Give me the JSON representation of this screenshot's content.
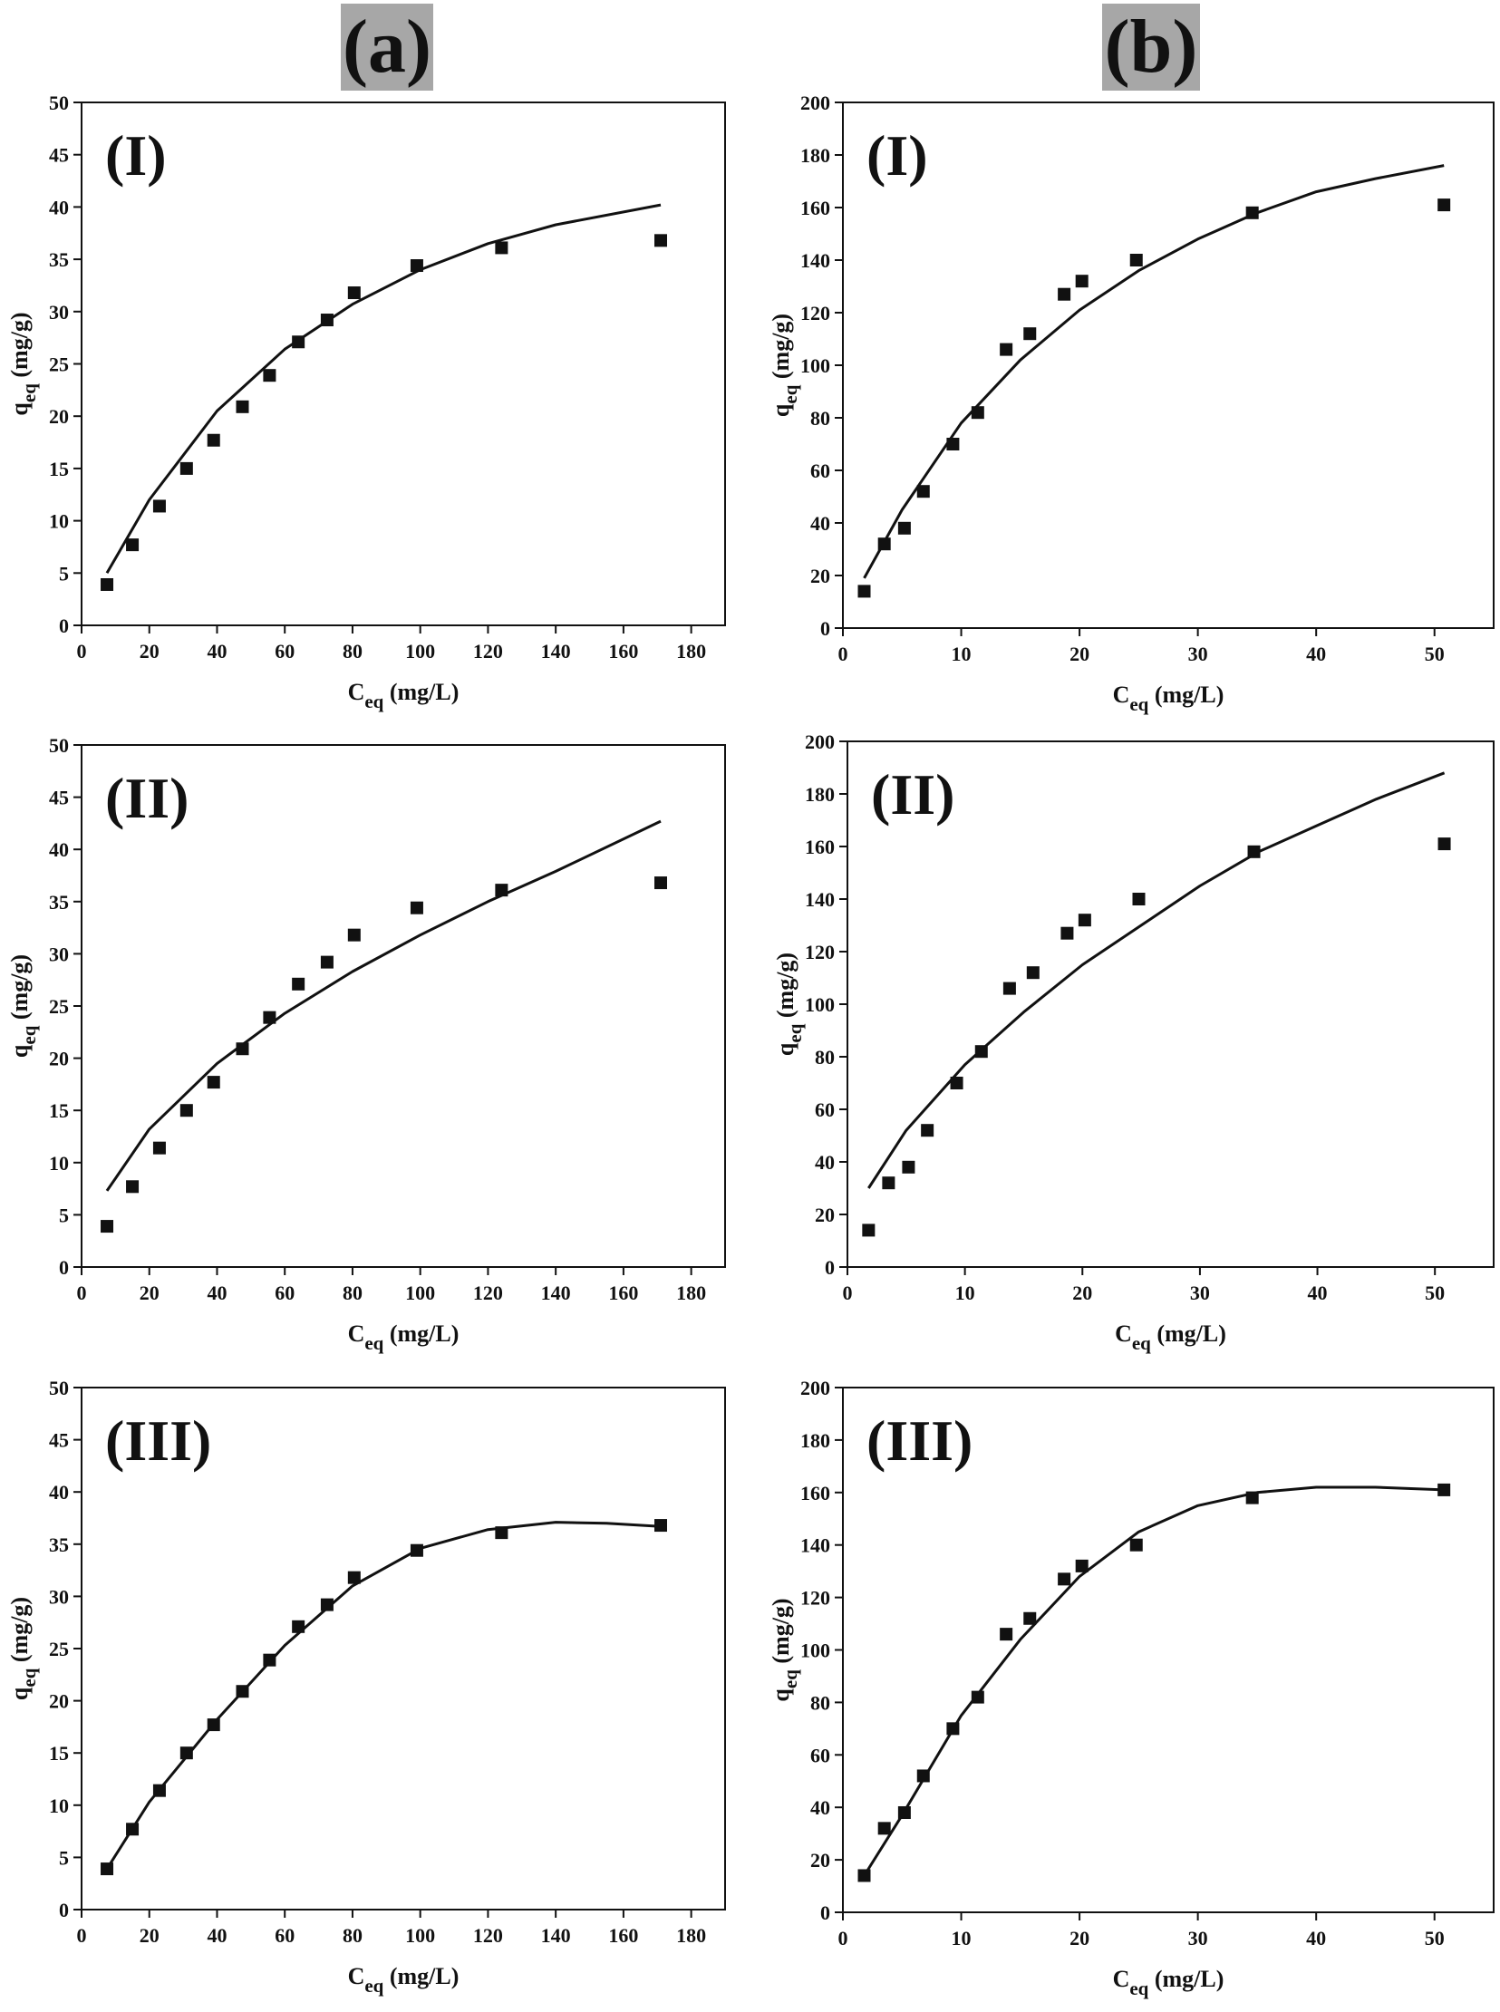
{
  "headers": {
    "a": "(a)",
    "b": "(b)"
  },
  "colors": {
    "ink": "#111111",
    "header_bg": "#a7a7a7"
  },
  "chart_data": [
    {
      "id": "a-I",
      "type": "scatter",
      "column": "(a)",
      "label": "(I)",
      "xlabel_main": "C",
      "xlabel_sub": "eq",
      "xlabel_unit": " (mg/L)",
      "ylabel_main": "q",
      "ylabel_sub": "eq",
      "ylabel_unit": " (mg/g)",
      "xlim": [
        0,
        190
      ],
      "ylim": [
        0,
        50
      ],
      "xticks": [
        0,
        20,
        40,
        60,
        80,
        100,
        120,
        140,
        160,
        180
      ],
      "yticks": [
        0,
        5,
        10,
        15,
        20,
        25,
        30,
        35,
        40,
        45,
        50
      ],
      "points": [
        [
          7.5,
          3.9
        ],
        [
          15,
          7.7
        ],
        [
          23,
          11.4
        ],
        [
          31,
          15
        ],
        [
          39,
          17.7
        ],
        [
          47.5,
          20.9
        ],
        [
          55.5,
          23.9
        ],
        [
          64,
          27.1
        ],
        [
          72.5,
          29.2
        ],
        [
          80.5,
          31.8
        ],
        [
          99,
          34.4
        ],
        [
          124,
          36.1
        ],
        [
          171,
          36.8
        ]
      ],
      "fit": [
        [
          7.5,
          5
        ],
        [
          20,
          12
        ],
        [
          40,
          20.5
        ],
        [
          60,
          26.4
        ],
        [
          80,
          30.7
        ],
        [
          100,
          34.0
        ],
        [
          120,
          36.5
        ],
        [
          140,
          38.3
        ],
        [
          171,
          40.2
        ]
      ]
    },
    {
      "id": "b-I",
      "type": "scatter",
      "column": "(b)",
      "label": "(I)",
      "xlabel_main": "C",
      "xlabel_sub": "eq",
      "xlabel_unit": " (mg/L)",
      "ylabel_main": "q",
      "ylabel_sub": "eq",
      "ylabel_unit": " (mg/g)",
      "xlim": [
        0,
        55
      ],
      "ylim": [
        0,
        200
      ],
      "xticks": [
        0,
        10,
        20,
        30,
        40,
        50
      ],
      "yticks": [
        0,
        20,
        40,
        60,
        80,
        100,
        120,
        140,
        160,
        180,
        200
      ],
      "points": [
        [
          1.8,
          14
        ],
        [
          3.5,
          32
        ],
        [
          5.2,
          38
        ],
        [
          6.8,
          52
        ],
        [
          9.3,
          70
        ],
        [
          11.4,
          82
        ],
        [
          13.8,
          106
        ],
        [
          15.8,
          112
        ],
        [
          18.7,
          127
        ],
        [
          20.2,
          132
        ],
        [
          24.8,
          140
        ],
        [
          34.6,
          158
        ],
        [
          50.8,
          161
        ]
      ],
      "fit": [
        [
          1.8,
          19
        ],
        [
          5,
          45
        ],
        [
          10,
          78
        ],
        [
          15,
          102
        ],
        [
          20,
          121
        ],
        [
          25,
          136
        ],
        [
          30,
          148
        ],
        [
          35,
          158
        ],
        [
          40,
          166
        ],
        [
          45,
          171
        ],
        [
          50.8,
          176
        ]
      ]
    },
    {
      "id": "a-II",
      "type": "scatter",
      "column": "(a)",
      "label": "(II)",
      "xlabel_main": "C",
      "xlabel_sub": "eq",
      "xlabel_unit": " (mg/L)",
      "ylabel_main": "q",
      "ylabel_sub": "eq",
      "ylabel_unit": " (mg/g)",
      "xlim": [
        0,
        190
      ],
      "ylim": [
        0,
        50
      ],
      "xticks": [
        0,
        20,
        40,
        60,
        80,
        100,
        120,
        140,
        160,
        180
      ],
      "yticks": [
        0,
        5,
        10,
        15,
        20,
        25,
        30,
        35,
        40,
        45,
        50
      ],
      "points": [
        [
          7.5,
          3.9
        ],
        [
          15,
          7.7
        ],
        [
          23,
          11.4
        ],
        [
          31,
          15
        ],
        [
          39,
          17.7
        ],
        [
          47.5,
          20.9
        ],
        [
          55.5,
          23.9
        ],
        [
          64,
          27.1
        ],
        [
          72.5,
          29.2
        ],
        [
          80.5,
          31.8
        ],
        [
          99,
          34.4
        ],
        [
          124,
          36.1
        ],
        [
          171,
          36.8
        ]
      ],
      "fit": [
        [
          7.5,
          7.3
        ],
        [
          20,
          13.2
        ],
        [
          40,
          19.5
        ],
        [
          60,
          24.3
        ],
        [
          80,
          28.3
        ],
        [
          100,
          31.8
        ],
        [
          120,
          35.0
        ],
        [
          140,
          37.9
        ],
        [
          171,
          42.7
        ]
      ]
    },
    {
      "id": "b-II",
      "type": "scatter",
      "column": "(b)",
      "label": "(II)",
      "xlabel_main": "C",
      "xlabel_sub": "eq",
      "xlabel_unit": " (mg/L)",
      "ylabel_main": "q",
      "ylabel_sub": "eq",
      "ylabel_unit": " (mg/g)",
      "xlim": [
        0,
        55
      ],
      "ylim": [
        0,
        200
      ],
      "xticks": [
        0,
        10,
        20,
        30,
        40,
        50
      ],
      "yticks": [
        0,
        20,
        40,
        60,
        80,
        100,
        120,
        140,
        160,
        180,
        200
      ],
      "points": [
        [
          1.8,
          14
        ],
        [
          3.5,
          32
        ],
        [
          5.2,
          38
        ],
        [
          6.8,
          52
        ],
        [
          9.3,
          70
        ],
        [
          11.4,
          82
        ],
        [
          13.8,
          106
        ],
        [
          15.8,
          112
        ],
        [
          18.7,
          127
        ],
        [
          20.2,
          132
        ],
        [
          24.8,
          140
        ],
        [
          34.6,
          158
        ],
        [
          50.8,
          161
        ]
      ],
      "fit": [
        [
          1.8,
          30
        ],
        [
          5,
          52
        ],
        [
          10,
          77
        ],
        [
          15,
          97
        ],
        [
          20,
          115
        ],
        [
          25,
          130
        ],
        [
          30,
          145
        ],
        [
          35,
          158
        ],
        [
          40,
          168
        ],
        [
          45,
          178
        ],
        [
          50.8,
          188
        ]
      ]
    },
    {
      "id": "a-III",
      "type": "scatter",
      "column": "(a)",
      "label": "(III)",
      "xlabel_main": "C",
      "xlabel_sub": "eq",
      "xlabel_unit": " (mg/L)",
      "ylabel_main": "q",
      "ylabel_sub": "eq",
      "ylabel_unit": " (mg/g)",
      "xlim": [
        0,
        190
      ],
      "ylim": [
        0,
        50
      ],
      "xticks": [
        0,
        20,
        40,
        60,
        80,
        100,
        120,
        140,
        160,
        180
      ],
      "yticks": [
        0,
        5,
        10,
        15,
        20,
        25,
        30,
        35,
        40,
        45,
        50
      ],
      "points": [
        [
          7.5,
          3.9
        ],
        [
          15,
          7.7
        ],
        [
          23,
          11.4
        ],
        [
          31,
          15
        ],
        [
          39,
          17.7
        ],
        [
          47.5,
          20.9
        ],
        [
          55.5,
          23.9
        ],
        [
          64,
          27.1
        ],
        [
          72.5,
          29.2
        ],
        [
          80.5,
          31.8
        ],
        [
          99,
          34.4
        ],
        [
          124,
          36.1
        ],
        [
          171,
          36.8
        ]
      ],
      "fit": [
        [
          7.5,
          3.9
        ],
        [
          20,
          10.3
        ],
        [
          40,
          18.2
        ],
        [
          60,
          25.3
        ],
        [
          80,
          31.0
        ],
        [
          100,
          34.6
        ],
        [
          120,
          36.4
        ],
        [
          140,
          37.1
        ],
        [
          155,
          37.0
        ],
        [
          171,
          36.7
        ]
      ]
    },
    {
      "id": "b-III",
      "type": "scatter",
      "column": "(b)",
      "label": "(III)",
      "xlabel_main": "C",
      "xlabel_sub": "eq",
      "xlabel_unit": " (mg/L)",
      "ylabel_main": "q",
      "ylabel_sub": "eq",
      "ylabel_unit": " (mg/g)",
      "xlim": [
        0,
        55
      ],
      "ylim": [
        0,
        200
      ],
      "xticks": [
        0,
        10,
        20,
        30,
        40,
        50
      ],
      "yticks": [
        0,
        20,
        40,
        60,
        80,
        100,
        120,
        140,
        160,
        180,
        200
      ],
      "points": [
        [
          1.8,
          14
        ],
        [
          3.5,
          32
        ],
        [
          5.2,
          38
        ],
        [
          6.8,
          52
        ],
        [
          9.3,
          70
        ],
        [
          11.4,
          82
        ],
        [
          13.8,
          106
        ],
        [
          15.8,
          112
        ],
        [
          18.7,
          127
        ],
        [
          20.2,
          132
        ],
        [
          24.8,
          140
        ],
        [
          34.6,
          158
        ],
        [
          50.8,
          161
        ]
      ],
      "fit": [
        [
          1.8,
          14
        ],
        [
          5,
          37
        ],
        [
          10,
          75
        ],
        [
          15,
          104
        ],
        [
          20,
          128
        ],
        [
          25,
          145
        ],
        [
          30,
          155
        ],
        [
          35,
          160
        ],
        [
          40,
          162
        ],
        [
          45,
          162
        ],
        [
          50.8,
          161
        ]
      ]
    }
  ]
}
